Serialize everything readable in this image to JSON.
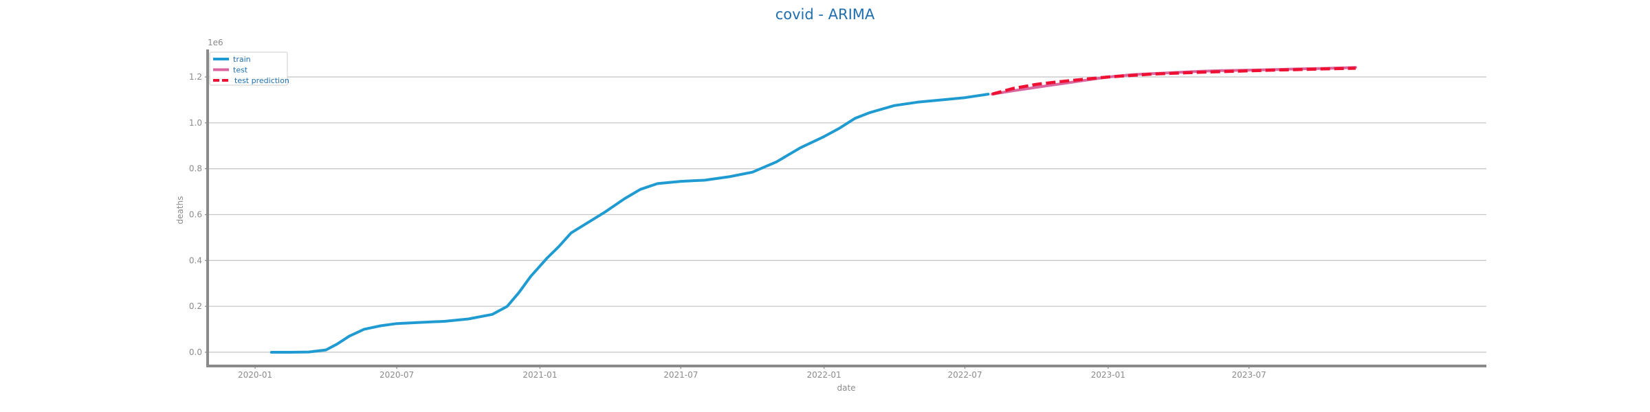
{
  "chart_data": {
    "type": "line",
    "title": "covid - ARIMA",
    "xlabel": "date",
    "ylabel": "deaths",
    "y_scale_label": "1e6",
    "x_ticks": [
      "2020-01",
      "2020-07",
      "2021-01",
      "2021-07",
      "2022-01",
      "2022-07",
      "2023-01",
      "2023-07"
    ],
    "y_ticks": [
      "0.0",
      "0.2",
      "0.4",
      "0.6",
      "0.8",
      "1.0",
      "1.2"
    ],
    "xlim": [
      "2019-11-01",
      "2024-05-01"
    ],
    "ylim": [
      -0.06,
      1.32
    ],
    "grid": "horizontal",
    "legend_position": "top-left",
    "colors": {
      "train": "#1f9bd1",
      "test": "#d9669f",
      "test_prediction": "#ee1133",
      "title": "#1f6fb0"
    },
    "series": [
      {
        "name": "train",
        "style": "solid",
        "points": [
          [
            "2020-01-22",
            0.0
          ],
          [
            "2020-02-15",
            0.0
          ],
          [
            "2020-03-10",
            0.001
          ],
          [
            "2020-04-01",
            0.01
          ],
          [
            "2020-04-15",
            0.035
          ],
          [
            "2020-05-01",
            0.07
          ],
          [
            "2020-05-20",
            0.1
          ],
          [
            "2020-06-10",
            0.115
          ],
          [
            "2020-07-01",
            0.125
          ],
          [
            "2020-08-01",
            0.13
          ],
          [
            "2020-09-01",
            0.135
          ],
          [
            "2020-10-01",
            0.145
          ],
          [
            "2020-11-01",
            0.165
          ],
          [
            "2020-11-20",
            0.2
          ],
          [
            "2020-12-05",
            0.26
          ],
          [
            "2020-12-20",
            0.33
          ],
          [
            "2021-01-10",
            0.41
          ],
          [
            "2021-01-25",
            0.46
          ],
          [
            "2021-02-10",
            0.52
          ],
          [
            "2021-03-01",
            0.56
          ],
          [
            "2021-03-25",
            0.61
          ],
          [
            "2021-04-20",
            0.67
          ],
          [
            "2021-05-10",
            0.71
          ],
          [
            "2021-06-01",
            0.735
          ],
          [
            "2021-07-01",
            0.745
          ],
          [
            "2021-08-01",
            0.75
          ],
          [
            "2021-09-01",
            0.765
          ],
          [
            "2021-10-01",
            0.785
          ],
          [
            "2021-11-01",
            0.83
          ],
          [
            "2021-12-01",
            0.89
          ],
          [
            "2022-01-01",
            0.94
          ],
          [
            "2022-01-20",
            0.975
          ],
          [
            "2022-02-10",
            1.02
          ],
          [
            "2022-03-01",
            1.045
          ],
          [
            "2022-04-01",
            1.075
          ],
          [
            "2022-05-01",
            1.09
          ],
          [
            "2022-06-01",
            1.1
          ],
          [
            "2022-07-01",
            1.11
          ],
          [
            "2022-07-31",
            1.125
          ]
        ]
      },
      {
        "name": "test",
        "style": "solid",
        "points": [
          [
            "2022-08-05",
            1.125
          ],
          [
            "2022-09-01",
            1.14
          ],
          [
            "2022-10-01",
            1.155
          ],
          [
            "2022-11-01",
            1.17
          ],
          [
            "2022-12-01",
            1.185
          ],
          [
            "2023-01-01",
            1.2
          ],
          [
            "2023-02-01",
            1.21
          ],
          [
            "2023-03-01",
            1.215
          ],
          [
            "2023-04-01",
            1.22
          ],
          [
            "2023-05-01",
            1.225
          ],
          [
            "2023-06-01",
            1.228
          ],
          [
            "2023-07-01",
            1.23
          ],
          [
            "2023-08-01",
            1.232
          ],
          [
            "2023-09-01",
            1.235
          ],
          [
            "2023-10-01",
            1.237
          ],
          [
            "2023-11-01",
            1.24
          ],
          [
            "2023-11-15",
            1.242
          ]
        ]
      },
      {
        "name": "test prediction",
        "style": "dashed",
        "points": [
          [
            "2022-08-05",
            1.125
          ],
          [
            "2022-09-01",
            1.15
          ],
          [
            "2022-10-01",
            1.168
          ],
          [
            "2022-11-01",
            1.18
          ],
          [
            "2022-12-01",
            1.19
          ],
          [
            "2023-01-01",
            1.2
          ],
          [
            "2023-02-01",
            1.207
          ],
          [
            "2023-03-01",
            1.213
          ],
          [
            "2023-04-01",
            1.217
          ],
          [
            "2023-05-01",
            1.221
          ],
          [
            "2023-06-01",
            1.224
          ],
          [
            "2023-07-01",
            1.227
          ],
          [
            "2023-08-01",
            1.23
          ],
          [
            "2023-09-01",
            1.232
          ],
          [
            "2023-10-01",
            1.235
          ],
          [
            "2023-11-01",
            1.237
          ],
          [
            "2023-11-15",
            1.238
          ]
        ]
      }
    ]
  }
}
